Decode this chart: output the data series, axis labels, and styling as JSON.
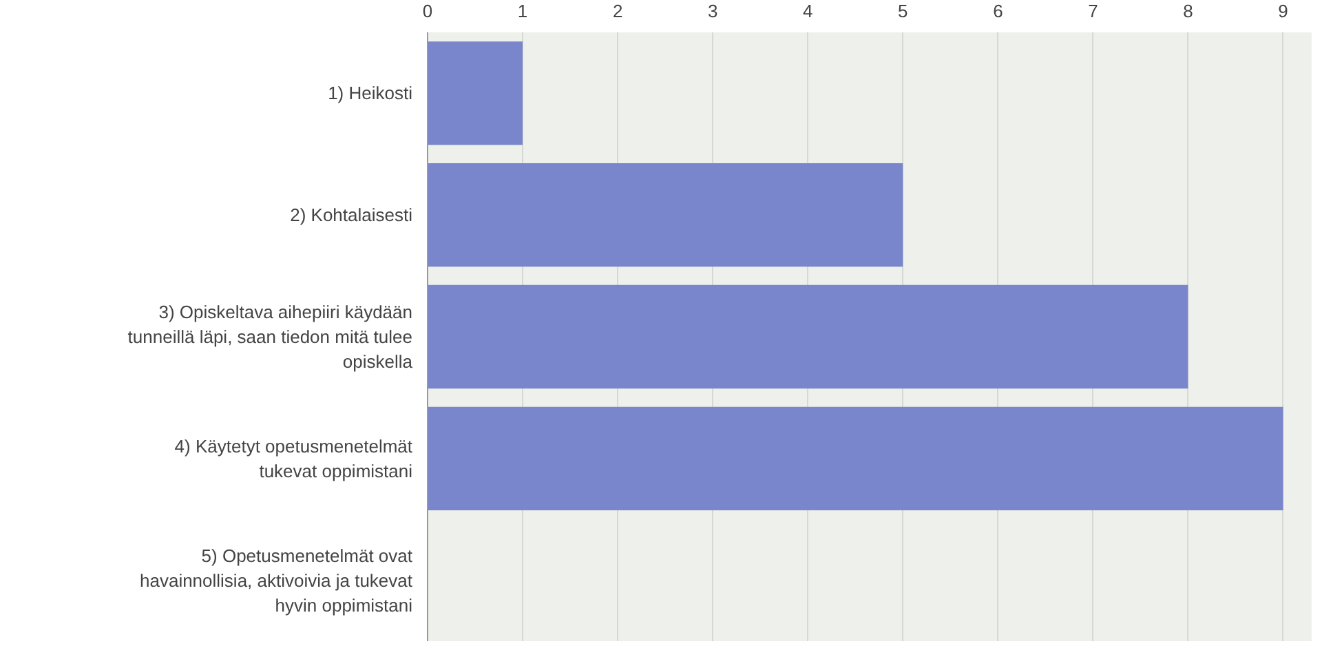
{
  "chart_data": {
    "type": "bar",
    "orientation": "horizontal",
    "categories": [
      "1) Heikosti",
      "2) Kohtalaisesti",
      "3) Opiskeltava aihepiiri käydään\ntunneillä läpi, saan tiedon mitä tulee\nopiskella",
      "4) Käytetyt opetusmenetelmät\ntukevat oppimistani",
      "5) Opetusmenetelmät ovat\nhavainnollisia, aktivoivia ja tukevat\nhyvin oppimistani"
    ],
    "values": [
      1,
      5,
      8,
      9,
      0
    ],
    "color": "#7986cb",
    "xlim": [
      0,
      9.3
    ],
    "xticks": [
      0,
      1,
      2,
      3,
      4,
      5,
      6,
      7,
      8,
      9
    ],
    "grid": "x"
  }
}
